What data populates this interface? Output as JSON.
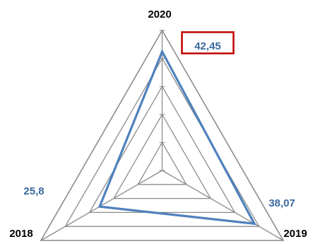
{
  "chart_data": {
    "type": "radar",
    "categories": [
      "2020",
      "2019",
      "2018"
    ],
    "series": [
      {
        "values": [
          42.45,
          38.07,
          25.8
        ]
      }
    ],
    "data_labels": [
      "42,45",
      "38,07",
      "25,8"
    ],
    "highlighted_label": "42,45",
    "rlim": [
      0,
      50
    ],
    "grid_rings": 5,
    "grid": true,
    "colors": {
      "series": "#4f81bd",
      "grid": "#8c8c8c",
      "highlight_box": "#c00000",
      "data_label": "#3b6a9e",
      "axis_label": "#000000"
    }
  }
}
